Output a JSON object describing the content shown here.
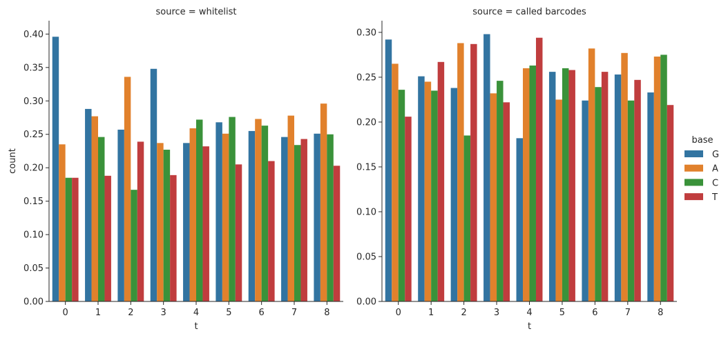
{
  "chart_data": [
    {
      "type": "bar",
      "title": "source = whitelist",
      "xlabel": "t",
      "ylabel": "count",
      "categories": [
        "0",
        "1",
        "2",
        "3",
        "4",
        "5",
        "6",
        "7",
        "8"
      ],
      "ylim": [
        0,
        0.42
      ],
      "yticks": [
        "0.00",
        "0.05",
        "0.10",
        "0.15",
        "0.20",
        "0.25",
        "0.30",
        "0.35",
        "0.40"
      ],
      "series": [
        {
          "name": "G",
          "values": [
            0.396,
            0.288,
            0.257,
            0.348,
            0.237,
            0.268,
            0.255,
            0.246,
            0.251
          ]
        },
        {
          "name": "A",
          "values": [
            0.235,
            0.277,
            0.336,
            0.237,
            0.259,
            0.251,
            0.273,
            0.278,
            0.296
          ]
        },
        {
          "name": "C",
          "values": [
            0.185,
            0.246,
            0.167,
            0.227,
            0.272,
            0.276,
            0.263,
            0.234,
            0.25
          ]
        },
        {
          "name": "T",
          "values": [
            0.185,
            0.188,
            0.239,
            0.189,
            0.232,
            0.205,
            0.21,
            0.243,
            0.203
          ]
        }
      ]
    },
    {
      "type": "bar",
      "title": "source = called barcodes",
      "xlabel": "t",
      "ylabel": "",
      "categories": [
        "0",
        "1",
        "2",
        "3",
        "4",
        "5",
        "6",
        "7",
        "8"
      ],
      "ylim": [
        0,
        0.313
      ],
      "yticks": [
        "0.00",
        "0.05",
        "0.10",
        "0.15",
        "0.20",
        "0.25",
        "0.30"
      ],
      "series": [
        {
          "name": "G",
          "values": [
            0.292,
            0.251,
            0.238,
            0.298,
            0.182,
            0.256,
            0.224,
            0.253,
            0.233
          ]
        },
        {
          "name": "A",
          "values": [
            0.265,
            0.245,
            0.288,
            0.232,
            0.26,
            0.225,
            0.282,
            0.277,
            0.273
          ]
        },
        {
          "name": "C",
          "values": [
            0.236,
            0.235,
            0.185,
            0.246,
            0.263,
            0.26,
            0.239,
            0.224,
            0.275
          ]
        },
        {
          "name": "T",
          "values": [
            0.206,
            0.267,
            0.287,
            0.222,
            0.294,
            0.258,
            0.256,
            0.247,
            0.219
          ]
        }
      ]
    }
  ],
  "legend": {
    "title": "base",
    "entries": [
      "G",
      "A",
      "C",
      "T"
    ],
    "placement": "right"
  },
  "colors": [
    "#3274a1",
    "#e1812c",
    "#3a923a",
    "#c03d3e"
  ]
}
